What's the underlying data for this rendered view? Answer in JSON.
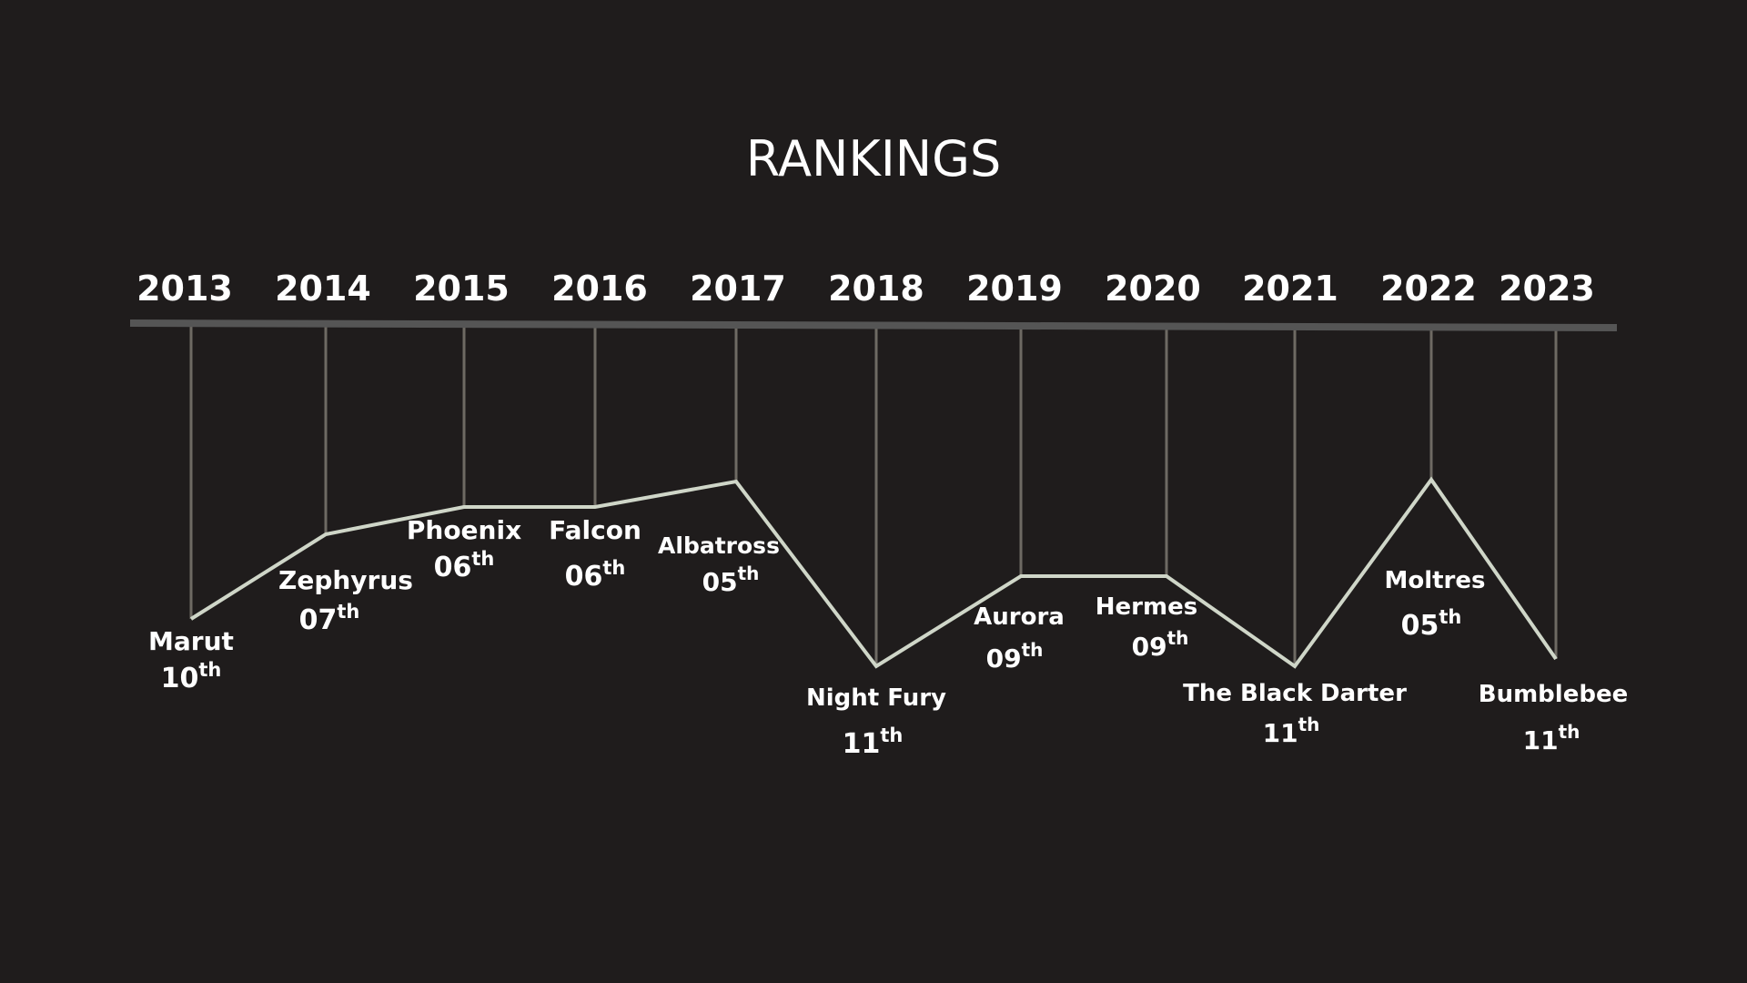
{
  "chart_data": {
    "type": "line",
    "title": "RANKINGS",
    "x": [
      "2013",
      "2014",
      "2015",
      "2016",
      "2017",
      "2018",
      "2019",
      "2020",
      "2021",
      "2022",
      "2023"
    ],
    "names": [
      "Marut",
      "Zephyrus",
      "Phoenix",
      "Falcon",
      "Albatross",
      "Night Fury",
      "Aurora",
      "Hermes",
      "The Black Darter",
      "Moltres",
      "Bumblebee"
    ],
    "rank_labels": [
      "10",
      "07",
      "06",
      "06",
      "05",
      "11",
      "09",
      "09",
      "11",
      "05",
      "11"
    ],
    "rank_suffix": "th",
    "values": [
      10,
      7,
      6,
      6,
      5,
      11,
      9,
      9,
      11,
      5,
      11
    ],
    "y_axis": "inverted rank (1 = top)",
    "grid": false,
    "legend": "none",
    "colors": {
      "background": "#1f1c1c",
      "axis": "#555555",
      "drop_lines": "#6e6a63",
      "line": "#cfd6c8",
      "text": "#ffffff"
    }
  }
}
